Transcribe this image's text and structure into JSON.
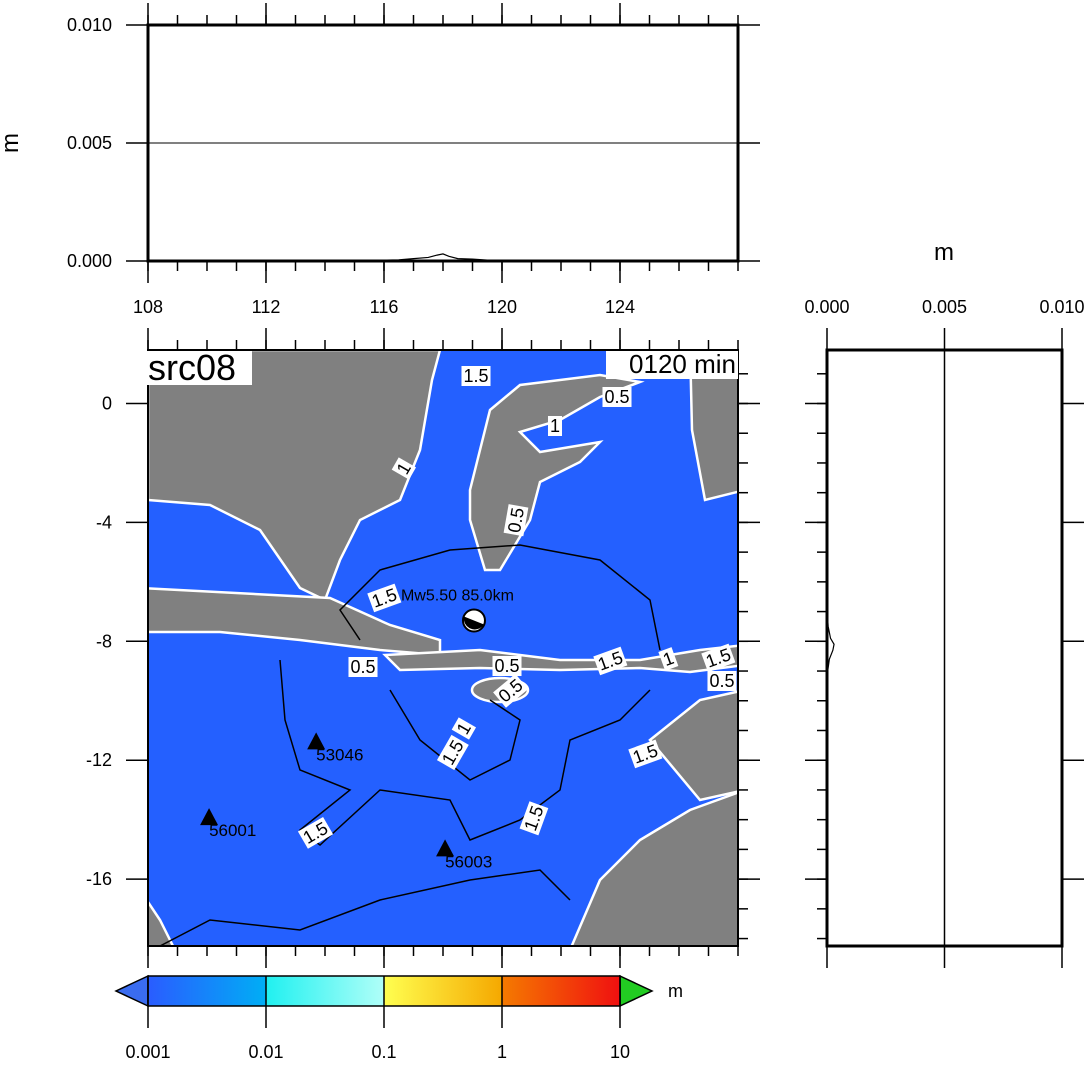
{
  "top_panel": {
    "ylabel": "m",
    "xlim": [
      108,
      128
    ],
    "ylim": [
      0,
      0.01
    ],
    "yticks": [
      {
        "value": 0,
        "label": "0.000"
      },
      {
        "value": 0.005,
        "label": "0.005"
      },
      {
        "value": 0.01,
        "label": "0.010"
      }
    ],
    "x": [
      113.5,
      114.5,
      115.5,
      116.5,
      117.0,
      117.5,
      117.8,
      118.0,
      118.2,
      118.5,
      119.0,
      119.5,
      120.5,
      121.5,
      122.5,
      123.5,
      125.0
    ],
    "values": [
      0.0,
      3e-05,
      2e-05,
      5e-05,
      0.0001,
      0.00015,
      0.00025,
      0.0003,
      0.0002,
      0.0001,
      8e-05,
      4e-05,
      3e-05,
      2e-05,
      4e-05,
      2e-05,
      0.0
    ]
  },
  "map": {
    "title": "src08",
    "time_label": "0120 min",
    "xlim": [
      108,
      128
    ],
    "ylim": [
      -18.25,
      1.8
    ],
    "xticks": [
      108,
      112,
      116,
      120,
      124
    ],
    "yticks": [
      0,
      -4,
      -8,
      -12,
      -16
    ],
    "epicenter": {
      "label": "Mw5.50 85.0km",
      "lon": 119.05,
      "lat": -7.3
    },
    "stations": [
      {
        "name": "53046",
        "lon": 113.7,
        "lat": -11.4
      },
      {
        "name": "56001",
        "lon": 110.07,
        "lat": -13.95
      },
      {
        "name": "56003",
        "lon": 118.07,
        "lat": -15.0
      }
    ],
    "contour_labels": [
      "1.5",
      "0.5",
      "1",
      "1",
      "0.5",
      "1.5",
      "0.5",
      "0.5",
      "0.5",
      "1.5",
      "1",
      "1.5",
      "0.5",
      "1",
      "1.5",
      "1.5",
      "1.5",
      "1.5"
    ]
  },
  "side_panel": {
    "title": "m",
    "xlim": [
      0,
      0.01
    ],
    "ylim": [
      -18.25,
      1.8
    ],
    "xticks": [
      {
        "value": 0,
        "label": "0.000"
      },
      {
        "value": 0.005,
        "label": "0.005"
      },
      {
        "value": 0.01,
        "label": "0.010"
      }
    ],
    "y": [
      -6.9,
      -7.5,
      -7.9,
      -8.1,
      -8.3,
      -8.6,
      -9.0,
      -9.4
    ],
    "values": [
      0.0,
      5e-05,
      0.00015,
      0.0003,
      0.00025,
      0.0001,
      3e-05,
      0.0
    ]
  },
  "colorbar": {
    "unit": "m",
    "ticks": [
      0.001,
      0.01,
      0.1,
      1,
      10
    ],
    "colors": [
      [
        "#2a5cff",
        "#00aef5"
      ],
      [
        "#20f0f0",
        "#b0fff8"
      ],
      [
        "#ffff50",
        "#f5a800"
      ],
      [
        "#f57a00",
        "#f01010"
      ]
    ],
    "under_color": "#3a6cf0",
    "over_color": "#22cc22"
  }
}
